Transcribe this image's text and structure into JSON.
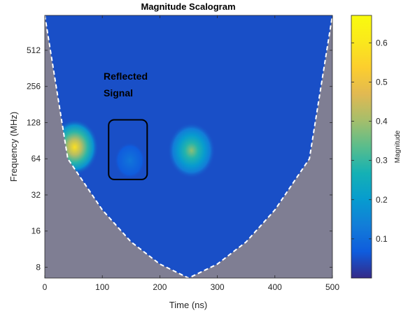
{
  "chart_data": {
    "type": "heatmap",
    "title": "Magnitude Scalogram",
    "xlabel": "Time (ns)",
    "ylabel": "Frequency (MHz)",
    "xlim": [
      0,
      500
    ],
    "ylim": [
      6.5,
      1000
    ],
    "y_scale": "log2",
    "x_ticks": [
      0,
      100,
      200,
      300,
      400,
      500
    ],
    "y_ticks": [
      8,
      16,
      32,
      64,
      128,
      256,
      512
    ],
    "colorbar": {
      "label": "Magnitude",
      "colormap": "parula",
      "range": [
        0,
        0.67
      ],
      "ticks": [
        0.1,
        0.2,
        0.3,
        0.4,
        0.5,
        0.6
      ]
    },
    "background_magnitude": 0.05,
    "cone_of_influence": {
      "style": "white dashed",
      "shaded_color": "#7f7e93",
      "points": [
        [
          0,
          1000
        ],
        [
          40,
          64
        ],
        [
          100,
          24
        ],
        [
          150,
          13
        ],
        [
          200,
          8.5
        ],
        [
          250,
          6.5
        ],
        [
          300,
          8.5
        ],
        [
          350,
          13
        ],
        [
          400,
          24
        ],
        [
          460,
          64
        ],
        [
          500,
          1000
        ]
      ]
    },
    "features": [
      {
        "name": "",
        "t": 52,
        "f": 80,
        "peak": 0.58
      },
      {
        "name": "",
        "t": 255,
        "f": 75,
        "peak": 0.38
      },
      {
        "name": "",
        "t": 148,
        "f": 62,
        "peak": 0.12
      }
    ],
    "annotation": {
      "text_lines": [
        "Reflected",
        "Signal"
      ],
      "box": {
        "t_range": [
          111,
          178
        ],
        "f_range": [
          43,
          135
        ]
      }
    }
  }
}
